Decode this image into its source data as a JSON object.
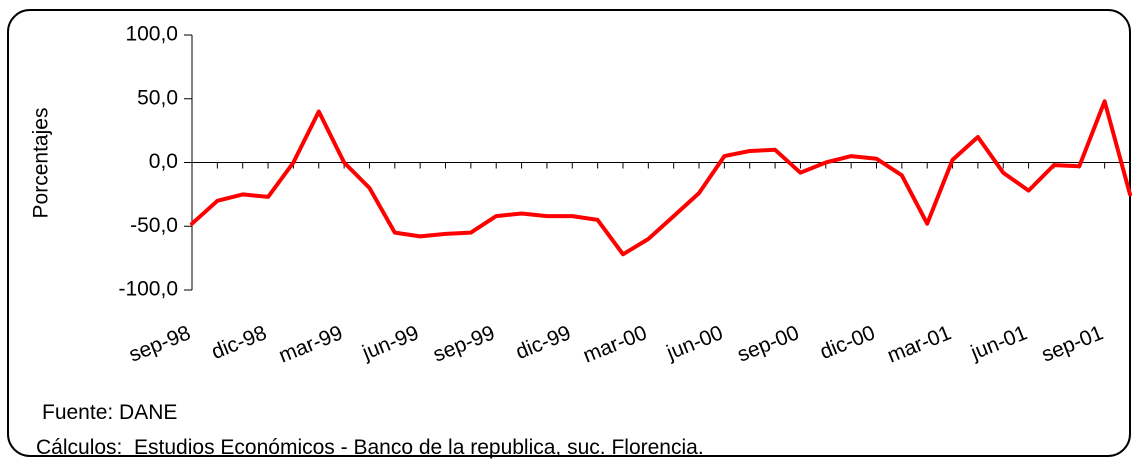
{
  "chart_data": {
    "type": "line",
    "y_label": "Porcentajes",
    "categories": [
      "sep-98",
      null,
      null,
      "dic-98",
      null,
      null,
      "mar-99",
      null,
      null,
      "jun-99",
      null,
      null,
      "sep-99",
      null,
      null,
      "dic-99",
      null,
      null,
      "mar-00",
      null,
      null,
      "jun-00",
      null,
      null,
      "sep-00",
      null,
      null,
      "dic-00",
      null,
      null,
      "mar-01",
      null,
      null,
      "jun-01",
      null,
      null,
      "sep-01",
      null
    ],
    "values": [
      -48,
      -30,
      -25,
      -27,
      0,
      40,
      0,
      -20,
      -55,
      -58,
      -56,
      -55,
      -42,
      -40,
      -42,
      -42,
      -45,
      -72,
      -60,
      -42,
      -24,
      5,
      9,
      10,
      -8,
      0,
      5,
      3,
      -10,
      -48,
      2,
      20,
      -8,
      -22,
      -2,
      -3,
      48,
      -25
    ],
    "color": "#ff0000",
    "ylim": [
      -100,
      100
    ],
    "yticks": [
      {
        "value": -100,
        "label": "-100,0"
      },
      {
        "value": -50,
        "label": "-50,0"
      },
      {
        "value": 0,
        "label": "0,0"
      },
      {
        "value": 50,
        "label": "50,0"
      },
      {
        "value": 100,
        "label": "100,0"
      }
    ],
    "source": "Fuente: DANE",
    "note": "Cálculos:  Estudios Económicos - Banco de la republica, suc. Florencia."
  }
}
